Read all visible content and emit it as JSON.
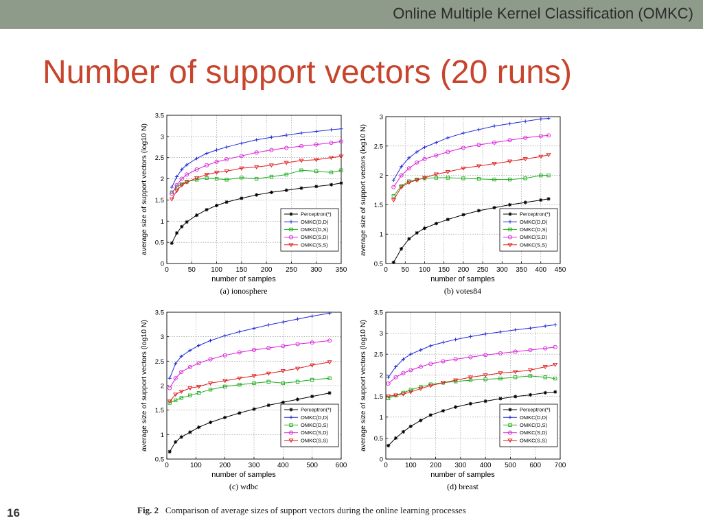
{
  "header": {
    "title": "Online Multiple Kernel Classification (OMKC)"
  },
  "slide": {
    "title": "Number of support vectors (20 runs)",
    "number": "16"
  },
  "figure": {
    "label": "Fig. 2",
    "caption": "Comparison of average sizes of support vectors during the online learning processes"
  },
  "legend_labels": [
    "Perceptron(*)",
    "OMKC(D,D)",
    "OMKC(D,S)",
    "OMKC(S,D)",
    "OMKC(S,S)"
  ],
  "series_colors": [
    "#000000",
    "#1f2bd6",
    "#1aab1a",
    "#d81fd8",
    "#e01a1a"
  ],
  "chart_data": [
    {
      "type": "line",
      "subtitle": "(a) ionosphere",
      "xlabel": "number of samples",
      "ylabel": "average size of support vectors (log10 N)",
      "xlim": [
        0,
        350
      ],
      "ylim": [
        0,
        3.5
      ],
      "xticks": [
        0,
        50,
        100,
        150,
        200,
        250,
        300,
        350
      ],
      "yticks": [
        0,
        0.5,
        1,
        1.5,
        2,
        2.5,
        3,
        3.5
      ],
      "grid": true,
      "legend": "bottom-right",
      "x": [
        10,
        20,
        30,
        40,
        60,
        80,
        100,
        120,
        150,
        180,
        210,
        240,
        270,
        300,
        330,
        350
      ],
      "series": [
        {
          "name": "Perceptron(*)",
          "values": [
            0.48,
            0.72,
            0.87,
            0.98,
            1.14,
            1.27,
            1.37,
            1.45,
            1.54,
            1.62,
            1.68,
            1.73,
            1.78,
            1.82,
            1.86,
            1.9
          ]
        },
        {
          "name": "OMKC(D,D)",
          "values": [
            1.8,
            2.05,
            2.22,
            2.33,
            2.48,
            2.6,
            2.68,
            2.75,
            2.84,
            2.92,
            2.98,
            3.03,
            3.08,
            3.12,
            3.16,
            3.18
          ]
        },
        {
          "name": "OMKC(D,S)",
          "values": [
            1.68,
            1.8,
            1.88,
            1.93,
            1.98,
            2.02,
            2.0,
            1.98,
            2.03,
            2.0,
            2.05,
            2.1,
            2.2,
            2.18,
            2.15,
            2.2
          ]
        },
        {
          "name": "OMKC(S,D)",
          "values": [
            1.65,
            1.85,
            2.0,
            2.1,
            2.22,
            2.32,
            2.4,
            2.46,
            2.54,
            2.62,
            2.68,
            2.73,
            2.77,
            2.81,
            2.85,
            2.88
          ]
        },
        {
          "name": "OMKC(S,S)",
          "values": [
            1.52,
            1.72,
            1.85,
            1.92,
            2.02,
            2.1,
            2.15,
            2.18,
            2.25,
            2.28,
            2.32,
            2.38,
            2.43,
            2.45,
            2.5,
            2.53
          ]
        }
      ]
    },
    {
      "type": "line",
      "subtitle": "(b) votes84",
      "xlabel": "number of samples",
      "ylabel": "average size of support vectors (log10 N)",
      "xlim": [
        0,
        450
      ],
      "ylim": [
        0.5,
        3
      ],
      "xticks": [
        0,
        50,
        100,
        150,
        200,
        250,
        300,
        350,
        400,
        450
      ],
      "yticks": [
        0.5,
        1,
        1.5,
        2,
        2.5,
        3
      ],
      "grid": true,
      "legend": "bottom-right",
      "x": [
        20,
        40,
        60,
        80,
        100,
        130,
        160,
        200,
        240,
        280,
        320,
        360,
        400,
        420
      ],
      "series": [
        {
          "name": "Perceptron(*)",
          "values": [
            0.52,
            0.75,
            0.92,
            1.02,
            1.1,
            1.18,
            1.25,
            1.33,
            1.4,
            1.45,
            1.5,
            1.54,
            1.58,
            1.6
          ]
        },
        {
          "name": "OMKC(D,D)",
          "values": [
            1.92,
            2.15,
            2.3,
            2.4,
            2.48,
            2.56,
            2.64,
            2.72,
            2.78,
            2.84,
            2.88,
            2.92,
            2.96,
            2.97
          ]
        },
        {
          "name": "OMKC(D,S)",
          "values": [
            1.65,
            1.82,
            1.9,
            1.93,
            1.95,
            1.96,
            1.96,
            1.95,
            1.94,
            1.93,
            1.93,
            1.95,
            2.0,
            2.0
          ]
        },
        {
          "name": "OMKC(S,D)",
          "values": [
            1.8,
            2.0,
            2.12,
            2.22,
            2.28,
            2.34,
            2.4,
            2.47,
            2.52,
            2.56,
            2.6,
            2.64,
            2.67,
            2.68
          ]
        },
        {
          "name": "OMKC(S,S)",
          "values": [
            1.58,
            1.8,
            1.88,
            1.92,
            1.96,
            2.02,
            2.06,
            2.12,
            2.16,
            2.2,
            2.24,
            2.28,
            2.32,
            2.35
          ]
        }
      ]
    },
    {
      "type": "line",
      "subtitle": "(c) wdbc",
      "xlabel": "number of samples",
      "ylabel": "average size of support vectors (log10 N)",
      "xlim": [
        0,
        600
      ],
      "ylim": [
        0.5,
        3.5
      ],
      "xticks": [
        0,
        100,
        200,
        300,
        400,
        500,
        600
      ],
      "yticks": [
        0.5,
        1,
        1.5,
        2,
        2.5,
        3,
        3.5
      ],
      "grid": true,
      "legend": "bottom-right",
      "x": [
        10,
        30,
        50,
        80,
        110,
        150,
        200,
        250,
        300,
        350,
        400,
        450,
        500,
        560
      ],
      "series": [
        {
          "name": "Perceptron(*)",
          "values": [
            0.65,
            0.85,
            0.95,
            1.05,
            1.15,
            1.25,
            1.35,
            1.44,
            1.52,
            1.6,
            1.66,
            1.72,
            1.78,
            1.85
          ]
        },
        {
          "name": "OMKC(D,D)",
          "values": [
            2.15,
            2.45,
            2.6,
            2.72,
            2.82,
            2.92,
            3.02,
            3.1,
            3.17,
            3.24,
            3.3,
            3.36,
            3.42,
            3.48
          ]
        },
        {
          "name": "OMKC(D,S)",
          "values": [
            1.65,
            1.7,
            1.75,
            1.8,
            1.85,
            1.92,
            1.98,
            2.02,
            2.05,
            2.08,
            2.05,
            2.08,
            2.12,
            2.15
          ]
        },
        {
          "name": "OMKC(S,D)",
          "values": [
            1.95,
            2.15,
            2.28,
            2.38,
            2.46,
            2.54,
            2.62,
            2.68,
            2.73,
            2.77,
            2.81,
            2.85,
            2.88,
            2.92
          ]
        },
        {
          "name": "OMKC(S,S)",
          "values": [
            1.68,
            1.82,
            1.88,
            1.95,
            1.98,
            2.05,
            2.1,
            2.15,
            2.2,
            2.25,
            2.3,
            2.35,
            2.42,
            2.48
          ]
        }
      ]
    },
    {
      "type": "line",
      "subtitle": "(d) breast",
      "xlabel": "number of samples",
      "ylabel": "average size of support vectors (log10 N)",
      "xlim": [
        0,
        700
      ],
      "ylim": [
        0,
        3.5
      ],
      "xticks": [
        0,
        100,
        200,
        300,
        400,
        500,
        600,
        700
      ],
      "yticks": [
        0,
        0.5,
        1,
        1.5,
        2,
        2.5,
        3,
        3.5
      ],
      "grid": true,
      "legend": "bottom-right",
      "x": [
        10,
        40,
        70,
        100,
        140,
        180,
        230,
        280,
        340,
        400,
        460,
        520,
        580,
        640,
        680
      ],
      "series": [
        {
          "name": "Perceptron(*)",
          "values": [
            0.32,
            0.5,
            0.65,
            0.78,
            0.92,
            1.05,
            1.15,
            1.24,
            1.32,
            1.38,
            1.44,
            1.49,
            1.53,
            1.58,
            1.6
          ]
        },
        {
          "name": "OMKC(D,D)",
          "values": [
            1.95,
            2.2,
            2.38,
            2.5,
            2.6,
            2.7,
            2.78,
            2.85,
            2.92,
            2.98,
            3.03,
            3.08,
            3.12,
            3.17,
            3.2
          ]
        },
        {
          "name": "OMKC(D,S)",
          "values": [
            1.45,
            1.52,
            1.58,
            1.65,
            1.72,
            1.78,
            1.82,
            1.85,
            1.88,
            1.9,
            1.92,
            1.95,
            1.98,
            1.95,
            1.92
          ]
        },
        {
          "name": "OMKC(S,D)",
          "values": [
            1.8,
            1.95,
            2.05,
            2.12,
            2.2,
            2.27,
            2.33,
            2.38,
            2.43,
            2.48,
            2.52,
            2.56,
            2.6,
            2.64,
            2.67
          ]
        },
        {
          "name": "OMKC(S,S)",
          "values": [
            1.5,
            1.52,
            1.55,
            1.6,
            1.68,
            1.75,
            1.82,
            1.88,
            1.95,
            2.0,
            2.05,
            2.08,
            2.12,
            2.2,
            2.25
          ]
        }
      ]
    }
  ]
}
